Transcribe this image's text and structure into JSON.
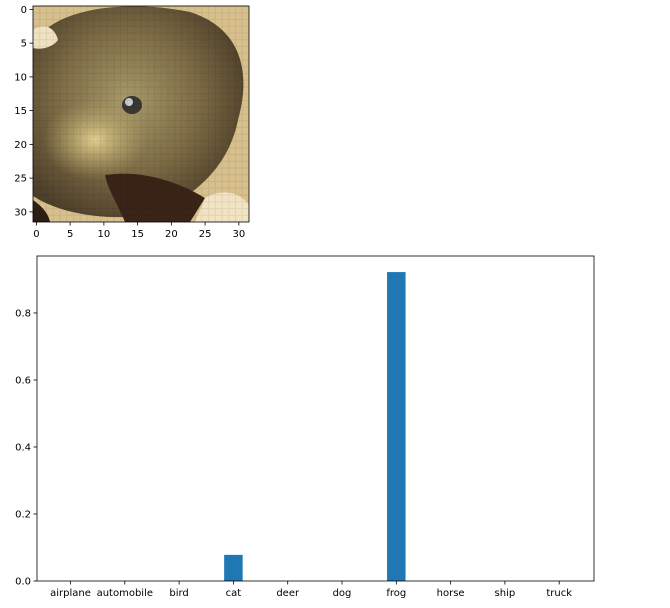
{
  "image_panel": {
    "x_ticks": [
      "0",
      "5",
      "10",
      "15",
      "20",
      "25",
      "30"
    ],
    "y_ticks": [
      "0",
      "5",
      "10",
      "15",
      "20",
      "25",
      "30"
    ],
    "pixel_grid_size": 32
  },
  "chart_data": {
    "type": "bar",
    "title": "",
    "xlabel": "",
    "ylabel": "",
    "categories": [
      "airplane",
      "automobile",
      "bird",
      "cat",
      "deer",
      "dog",
      "frog",
      "horse",
      "ship",
      "truck"
    ],
    "values": [
      0.0,
      0.0,
      0.0,
      0.078,
      0.0,
      0.0,
      0.922,
      0.0,
      0.0,
      0.0
    ],
    "ylim": [
      0,
      0.97
    ],
    "y_ticks": [
      "0.0",
      "0.2",
      "0.4",
      "0.6",
      "0.8"
    ],
    "grid": false,
    "bar_color": "#1f77b4"
  }
}
